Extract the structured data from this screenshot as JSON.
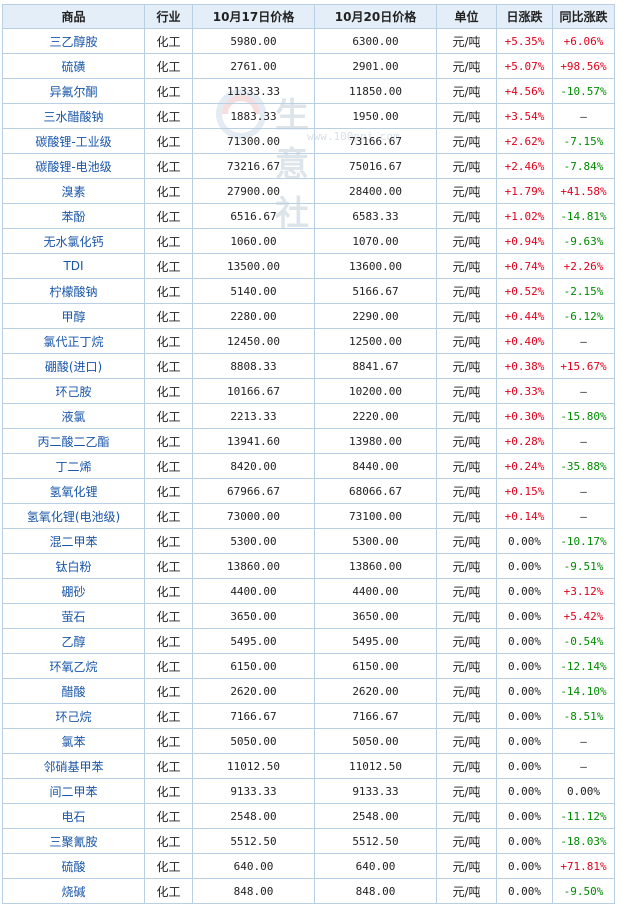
{
  "watermark": {
    "text": "生 意 社",
    "url": "www.100ppi.com"
  },
  "headers": [
    "商品",
    "行业",
    "10月17日价格",
    "10月20日价格",
    "单位",
    "日涨跌",
    "同比涨跌"
  ],
  "rows": [
    {
      "name": "三乙醇胺",
      "industry": "化工",
      "p1": "5980.00",
      "p2": "6300.00",
      "unit": "元/吨",
      "day": "+5.35%",
      "yoy": "+6.06%"
    },
    {
      "name": "硫磺",
      "industry": "化工",
      "p1": "2761.00",
      "p2": "2901.00",
      "unit": "元/吨",
      "day": "+5.07%",
      "yoy": "+98.56%"
    },
    {
      "name": "异氟尔酮",
      "industry": "化工",
      "p1": "11333.33",
      "p2": "11850.00",
      "unit": "元/吨",
      "day": "+4.56%",
      "yoy": "-10.57%"
    },
    {
      "name": "三水醋酸钠",
      "industry": "化工",
      "p1": "1883.33",
      "p2": "1950.00",
      "unit": "元/吨",
      "day": "+3.54%",
      "yoy": "—"
    },
    {
      "name": "碳酸锂-工业级",
      "industry": "化工",
      "p1": "71300.00",
      "p2": "73166.67",
      "unit": "元/吨",
      "day": "+2.62%",
      "yoy": "-7.15%"
    },
    {
      "name": "碳酸锂-电池级",
      "industry": "化工",
      "p1": "73216.67",
      "p2": "75016.67",
      "unit": "元/吨",
      "day": "+2.46%",
      "yoy": "-7.84%"
    },
    {
      "name": "溴素",
      "industry": "化工",
      "p1": "27900.00",
      "p2": "28400.00",
      "unit": "元/吨",
      "day": "+1.79%",
      "yoy": "+41.58%"
    },
    {
      "name": "苯酚",
      "industry": "化工",
      "p1": "6516.67",
      "p2": "6583.33",
      "unit": "元/吨",
      "day": "+1.02%",
      "yoy": "-14.81%"
    },
    {
      "name": "无水氯化钙",
      "industry": "化工",
      "p1": "1060.00",
      "p2": "1070.00",
      "unit": "元/吨",
      "day": "+0.94%",
      "yoy": "-9.63%"
    },
    {
      "name": "TDI",
      "industry": "化工",
      "p1": "13500.00",
      "p2": "13600.00",
      "unit": "元/吨",
      "day": "+0.74%",
      "yoy": "+2.26%"
    },
    {
      "name": "柠檬酸钠",
      "industry": "化工",
      "p1": "5140.00",
      "p2": "5166.67",
      "unit": "元/吨",
      "day": "+0.52%",
      "yoy": "-2.15%"
    },
    {
      "name": "甲醇",
      "industry": "化工",
      "p1": "2280.00",
      "p2": "2290.00",
      "unit": "元/吨",
      "day": "+0.44%",
      "yoy": "-6.12%"
    },
    {
      "name": "氯代正丁烷",
      "industry": "化工",
      "p1": "12450.00",
      "p2": "12500.00",
      "unit": "元/吨",
      "day": "+0.40%",
      "yoy": "—"
    },
    {
      "name": "硼酸(进口)",
      "industry": "化工",
      "p1": "8808.33",
      "p2": "8841.67",
      "unit": "元/吨",
      "day": "+0.38%",
      "yoy": "+15.67%"
    },
    {
      "name": "环己胺",
      "industry": "化工",
      "p1": "10166.67",
      "p2": "10200.00",
      "unit": "元/吨",
      "day": "+0.33%",
      "yoy": "—"
    },
    {
      "name": "液氯",
      "industry": "化工",
      "p1": "2213.33",
      "p2": "2220.00",
      "unit": "元/吨",
      "day": "+0.30%",
      "yoy": "-15.80%"
    },
    {
      "name": "丙二酸二乙酯",
      "industry": "化工",
      "p1": "13941.60",
      "p2": "13980.00",
      "unit": "元/吨",
      "day": "+0.28%",
      "yoy": "—"
    },
    {
      "name": "丁二烯",
      "industry": "化工",
      "p1": "8420.00",
      "p2": "8440.00",
      "unit": "元/吨",
      "day": "+0.24%",
      "yoy": "-35.88%"
    },
    {
      "name": "氢氧化锂",
      "industry": "化工",
      "p1": "67966.67",
      "p2": "68066.67",
      "unit": "元/吨",
      "day": "+0.15%",
      "yoy": "—"
    },
    {
      "name": "氢氧化锂(电池级)",
      "industry": "化工",
      "p1": "73000.00",
      "p2": "73100.00",
      "unit": "元/吨",
      "day": "+0.14%",
      "yoy": "—"
    },
    {
      "name": "混二甲苯",
      "industry": "化工",
      "p1": "5300.00",
      "p2": "5300.00",
      "unit": "元/吨",
      "day": "0.00%",
      "yoy": "-10.17%"
    },
    {
      "name": "钛白粉",
      "industry": "化工",
      "p1": "13860.00",
      "p2": "13860.00",
      "unit": "元/吨",
      "day": "0.00%",
      "yoy": "-9.51%"
    },
    {
      "name": "硼砂",
      "industry": "化工",
      "p1": "4400.00",
      "p2": "4400.00",
      "unit": "元/吨",
      "day": "0.00%",
      "yoy": "+3.12%"
    },
    {
      "name": "萤石",
      "industry": "化工",
      "p1": "3650.00",
      "p2": "3650.00",
      "unit": "元/吨",
      "day": "0.00%",
      "yoy": "+5.42%"
    },
    {
      "name": "乙醇",
      "industry": "化工",
      "p1": "5495.00",
      "p2": "5495.00",
      "unit": "元/吨",
      "day": "0.00%",
      "yoy": "-0.54%"
    },
    {
      "name": "环氧乙烷",
      "industry": "化工",
      "p1": "6150.00",
      "p2": "6150.00",
      "unit": "元/吨",
      "day": "0.00%",
      "yoy": "-12.14%"
    },
    {
      "name": "醋酸",
      "industry": "化工",
      "p1": "2620.00",
      "p2": "2620.00",
      "unit": "元/吨",
      "day": "0.00%",
      "yoy": "-14.10%"
    },
    {
      "name": "环己烷",
      "industry": "化工",
      "p1": "7166.67",
      "p2": "7166.67",
      "unit": "元/吨",
      "day": "0.00%",
      "yoy": "-8.51%"
    },
    {
      "name": "氯苯",
      "industry": "化工",
      "p1": "5050.00",
      "p2": "5050.00",
      "unit": "元/吨",
      "day": "0.00%",
      "yoy": "—"
    },
    {
      "name": "邻硝基甲苯",
      "industry": "化工",
      "p1": "11012.50",
      "p2": "11012.50",
      "unit": "元/吨",
      "day": "0.00%",
      "yoy": "—"
    },
    {
      "name": "间二甲苯",
      "industry": "化工",
      "p1": "9133.33",
      "p2": "9133.33",
      "unit": "元/吨",
      "day": "0.00%",
      "yoy": "0.00%"
    },
    {
      "name": "电石",
      "industry": "化工",
      "p1": "2548.00",
      "p2": "2548.00",
      "unit": "元/吨",
      "day": "0.00%",
      "yoy": "-11.12%"
    },
    {
      "name": "三聚氰胺",
      "industry": "化工",
      "p1": "5512.50",
      "p2": "5512.50",
      "unit": "元/吨",
      "day": "0.00%",
      "yoy": "-18.03%"
    },
    {
      "name": "硫酸",
      "industry": "化工",
      "p1": "640.00",
      "p2": "640.00",
      "unit": "元/吨",
      "day": "0.00%",
      "yoy": "+71.81%"
    },
    {
      "name": "烧碱",
      "industry": "化工",
      "p1": "848.00",
      "p2": "848.00",
      "unit": "元/吨",
      "day": "0.00%",
      "yoy": "-9.50%"
    }
  ],
  "colors": {
    "up": "#e0001b",
    "down": "#008a00",
    "header_bg": "#e4eef8",
    "border": "#b9cfe3",
    "link": "#1a56a8"
  }
}
